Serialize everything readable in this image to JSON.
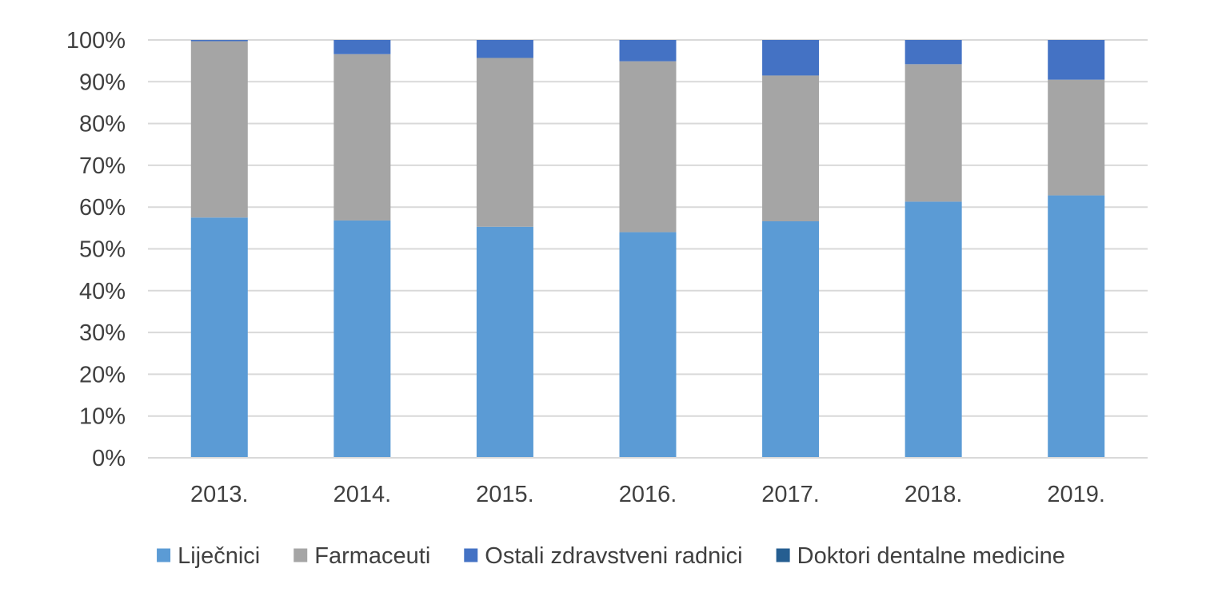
{
  "chart_data": {
    "type": "bar",
    "stacked": true,
    "percent": true,
    "categories": [
      "2013.",
      "2014.",
      "2015.",
      "2016.",
      "2017.",
      "2018.",
      "2019."
    ],
    "ylim": [
      0,
      100
    ],
    "yticks": [
      "0%",
      "10%",
      "20%",
      "30%",
      "40%",
      "50%",
      "60%",
      "70%",
      "80%",
      "90%",
      "100%"
    ],
    "grid": true,
    "legend_position": "bottom",
    "series": [
      {
        "name": "Liječnici",
        "color": "#5b9bd5",
        "values": [
          57.5,
          56.8,
          55.3,
          54.0,
          56.6,
          61.3,
          62.8
        ]
      },
      {
        "name": "Farmaceuti",
        "color": "#a5a5a5",
        "values": [
          42.2,
          39.8,
          40.4,
          40.9,
          34.9,
          32.9,
          27.7
        ]
      },
      {
        "name": "Ostali zdravstveni radnici",
        "color": "#4472c4",
        "values": [
          0.3,
          3.4,
          4.3,
          5.1,
          8.5,
          5.8,
          9.5
        ]
      },
      {
        "name": "Doktori dentalne medicine",
        "color": "#255e91",
        "values": [
          0,
          0,
          0,
          0,
          0,
          0,
          0
        ]
      }
    ]
  }
}
